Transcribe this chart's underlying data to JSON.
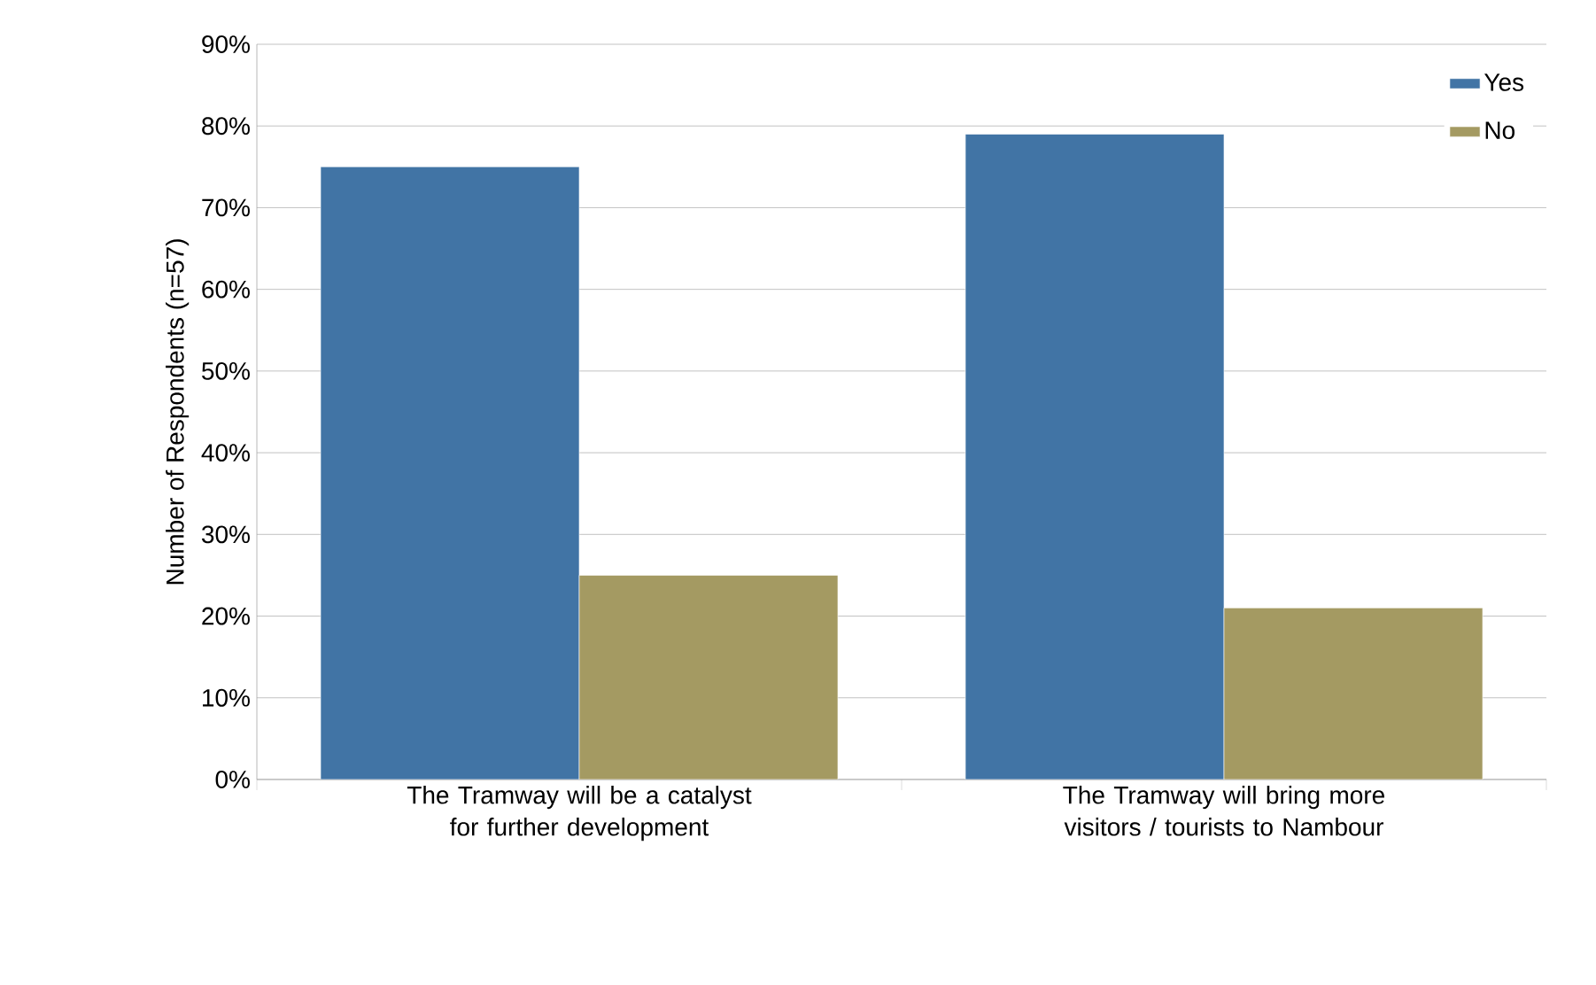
{
  "chart_data": {
    "type": "bar",
    "ylabel": "Number of Respondents (n=57)",
    "categories": [
      "The Tramway will be a catalyst for further development",
      "The Tramway will bring more visitors / tourists to Nambour"
    ],
    "series": [
      {
        "name": "Yes",
        "color": "#4174a5",
        "values": [
          75,
          79
        ]
      },
      {
        "name": "No",
        "color": "#a49a62",
        "values": [
          25,
          21
        ]
      }
    ],
    "ylim": [
      0,
      90
    ],
    "yticks": [
      {
        "value": 0,
        "label": "0%"
      },
      {
        "value": 10,
        "label": "10%"
      },
      {
        "value": 20,
        "label": "20%"
      },
      {
        "value": 30,
        "label": "30%"
      },
      {
        "value": 40,
        "label": "40%"
      },
      {
        "value": 50,
        "label": "50%"
      },
      {
        "value": 60,
        "label": "60%"
      },
      {
        "value": 70,
        "label": "70%"
      },
      {
        "value": 80,
        "label": "80%"
      },
      {
        "value": 90,
        "label": "90%"
      }
    ],
    "grid": "y",
    "legend": "top right"
  }
}
